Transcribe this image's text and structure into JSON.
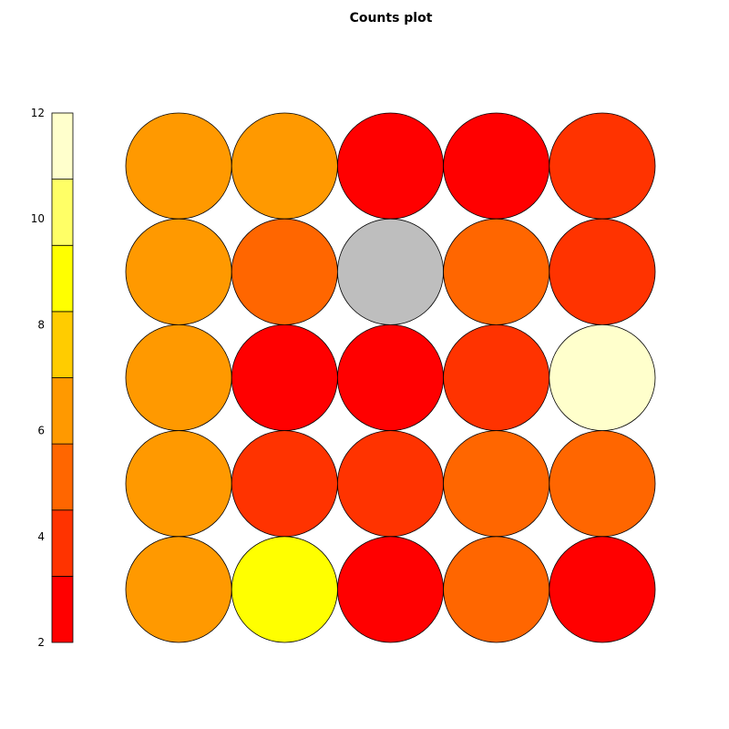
{
  "chart_data": {
    "type": "heatmap",
    "title": "Counts plot",
    "grid_rows": 5,
    "grid_cols": 5,
    "colorbar": {
      "range": [
        2,
        12
      ],
      "ticks": [
        "2",
        "4",
        "6",
        "8",
        "10",
        "12"
      ],
      "tick_values": [
        2,
        4,
        6,
        8,
        10,
        12
      ],
      "bins": [
        {
          "from": 2,
          "to": 3.25,
          "color": "#ff0000"
        },
        {
          "from": 3.25,
          "to": 4.5,
          "color": "#ff3300"
        },
        {
          "from": 4.5,
          "to": 5.75,
          "color": "#ff6600"
        },
        {
          "from": 5.75,
          "to": 7.0,
          "color": "#ff9900"
        },
        {
          "from": 7.0,
          "to": 8.25,
          "color": "#ffcc00"
        },
        {
          "from": 8.25,
          "to": 9.5,
          "color": "#ffff00"
        },
        {
          "from": 9.5,
          "to": 10.75,
          "color": "#ffff66"
        },
        {
          "from": 10.75,
          "to": 12,
          "color": "#ffffcc"
        }
      ]
    },
    "empty_color": "#bebebe",
    "cells": [
      [
        6,
        6,
        2,
        2,
        4
      ],
      [
        6,
        5,
        null,
        5,
        4
      ],
      [
        6,
        2,
        2,
        4,
        11
      ],
      [
        6,
        4,
        4,
        5,
        5
      ],
      [
        6,
        9,
        2,
        5,
        2
      ]
    ]
  }
}
